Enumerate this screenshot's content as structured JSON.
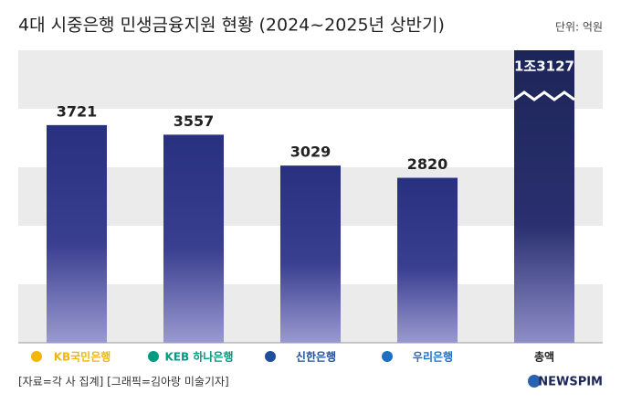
{
  "chart_data": {
    "type": "bar",
    "title": "4대 시중은행 민생금융지원 현황 (2024~2025년 상반기)",
    "unit": "단위: 억원",
    "source": "[자료=각 사 집계] [그래픽=김아랑 미술기자]",
    "brand": "NEWSPIM",
    "categories": [
      "KB국민은행",
      "KEB 하나은행",
      "신한은행",
      "우리은행",
      "총액"
    ],
    "values": [
      3721,
      3557,
      3029,
      2820,
      13127
    ],
    "value_labels": [
      "3721",
      "3557",
      "3029",
      "2820",
      "1조3127"
    ],
    "color": "#283080",
    "total_color": "#1c2557",
    "ylim": [
      0,
      5000
    ],
    "yticks": [
      0,
      1000,
      2000,
      3000,
      4000,
      5000
    ],
    "grid": true,
    "axis_break": true
  }
}
